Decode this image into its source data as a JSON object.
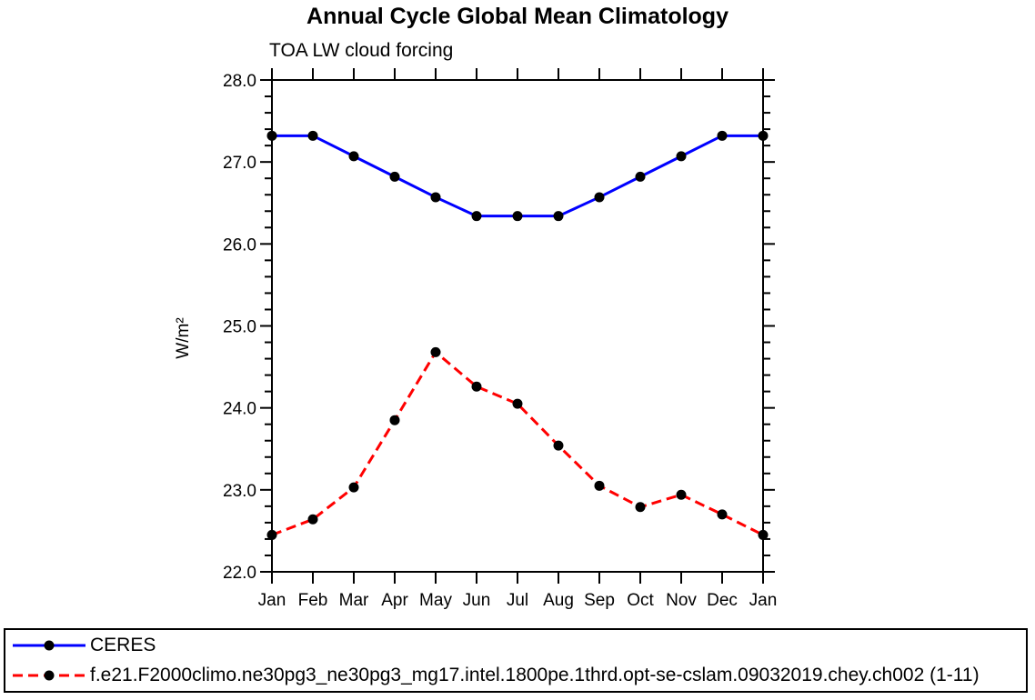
{
  "chart_data": {
    "type": "line",
    "title": "Annual Cycle Global Mean Climatology",
    "subtitle": "TOA LW cloud forcing",
    "ylabel": "W/m²",
    "categories": [
      "Jan",
      "Feb",
      "Mar",
      "Apr",
      "May",
      "Jun",
      "Jul",
      "Aug",
      "Sep",
      "Oct",
      "Nov",
      "Dec",
      "Jan"
    ],
    "ylim": [
      22.0,
      28.0
    ],
    "ytick_major": 1.0,
    "ytick_minor": 0.2,
    "ytick_labels": [
      "22.0",
      "23.0",
      "24.0",
      "25.0",
      "26.0",
      "27.0",
      "28.0"
    ],
    "grid": false,
    "legend_position": "bottom",
    "marker_color": "#000000",
    "axis_color": "#000000",
    "series": [
      {
        "name": "CERES",
        "color": "#0000ff",
        "style": "solid",
        "marker": "filled-circle",
        "values": [
          27.32,
          27.32,
          27.07,
          26.82,
          26.57,
          26.34,
          26.34,
          26.34,
          26.57,
          26.82,
          27.07,
          27.32,
          27.32
        ]
      },
      {
        "name": "f.e21.F2000climo.ne30pg3_ne30pg3_mg17.intel.1800pe.1thrd.opt-se-cslam.09032019.chey.ch002 (1-11)",
        "color": "#ff0000",
        "style": "dashed",
        "marker": "filled-circle",
        "values": [
          22.45,
          22.64,
          23.03,
          23.85,
          24.68,
          24.26,
          24.05,
          23.54,
          23.05,
          22.79,
          22.94,
          22.7,
          22.45
        ]
      }
    ]
  }
}
